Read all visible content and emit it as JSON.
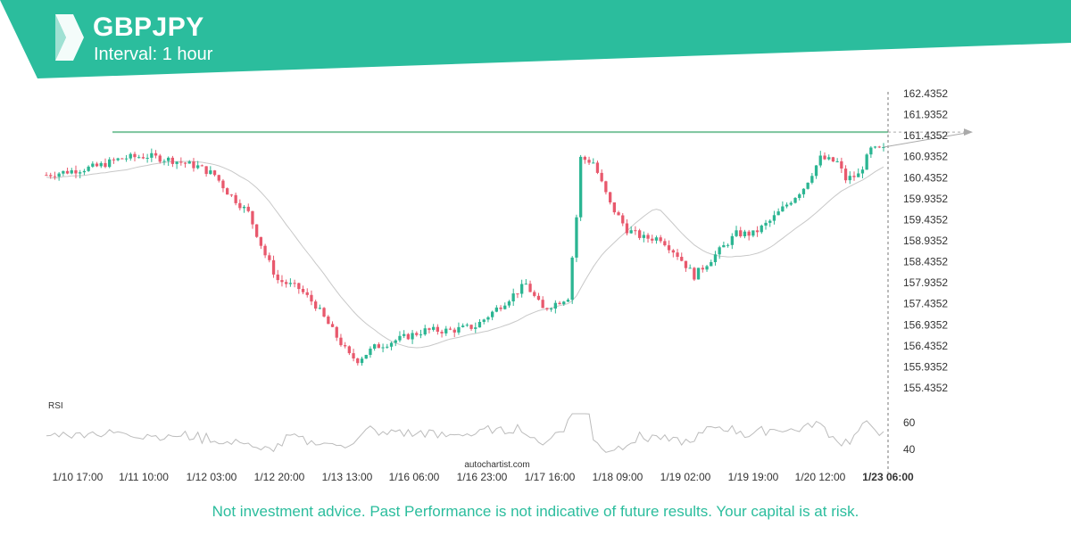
{
  "header": {
    "title": "GBPJPY",
    "subtitle": "Interval: 1 hour"
  },
  "watermark": "autochartist.com",
  "disclaimer": "Not investment advice. Past Performance is not indicative of future results. Your capital is at risk.",
  "colors": {
    "brand": "#2bbd9d",
    "up": "#2bb592",
    "down": "#e8596d",
    "resistance": "#7cc49d",
    "ma": "#c8c8c8",
    "rsi": "#bcbcbc"
  },
  "icons": [
    "autochartist-logo-icon"
  ],
  "chart_data": {
    "type": "candlestick",
    "ylim": [
      155.0,
      162.5
    ],
    "yticks": [
      "162.4352",
      "161.9352",
      "161.4352",
      "160.9352",
      "160.4352",
      "159.9352",
      "159.4352",
      "158.9352",
      "158.4352",
      "157.9352",
      "157.4352",
      "156.9352",
      "156.4352",
      "155.9352",
      "155.4352"
    ],
    "xticks": [
      "1/10 17:00",
      "1/11 10:00",
      "1/12 03:00",
      "1/12 20:00",
      "1/13 13:00",
      "1/16 06:00",
      "1/16 23:00",
      "1/17 16:00",
      "1/18 09:00",
      "1/19 02:00",
      "1/19 19:00",
      "1/20 12:00",
      "1/23 06:00"
    ],
    "highlight_xtick": "1/23 06:00",
    "resistance_level": 161.52,
    "price_path": [
      [
        0,
        160.5
      ],
      [
        6,
        160.6
      ],
      [
        12,
        160.7
      ],
      [
        18,
        160.9
      ],
      [
        24,
        160.95
      ],
      [
        30,
        160.85
      ],
      [
        36,
        160.7
      ],
      [
        40,
        160.5
      ],
      [
        43,
        160.1
      ],
      [
        48,
        159.6
      ],
      [
        52,
        158.6
      ],
      [
        55,
        158.0
      ],
      [
        60,
        157.8
      ],
      [
        64,
        157.4
      ],
      [
        68,
        156.8
      ],
      [
        72,
        156.2
      ],
      [
        74,
        156.1
      ],
      [
        78,
        156.4
      ],
      [
        84,
        156.6
      ],
      [
        90,
        156.8
      ],
      [
        96,
        156.8
      ],
      [
        102,
        156.9
      ],
      [
        108,
        157.4
      ],
      [
        114,
        157.9
      ],
      [
        118,
        157.3
      ],
      [
        124,
        157.6
      ],
      [
        126,
        159.5
      ],
      [
        127,
        160.9
      ],
      [
        130,
        160.8
      ],
      [
        134,
        159.8
      ],
      [
        138,
        159.2
      ],
      [
        142,
        159.0
      ],
      [
        146,
        159.0
      ],
      [
        150,
        158.6
      ],
      [
        154,
        158.1
      ],
      [
        156,
        158.3
      ],
      [
        160,
        158.7
      ],
      [
        164,
        159.1
      ],
      [
        168,
        159.1
      ],
      [
        172,
        159.4
      ],
      [
        176,
        159.8
      ],
      [
        180,
        160.2
      ],
      [
        184,
        160.9
      ],
      [
        188,
        160.8
      ],
      [
        190,
        160.4
      ],
      [
        193,
        160.5
      ],
      [
        196,
        161.1
      ]
    ],
    "rsi": {
      "label": "RSI",
      "levels": [
        "60",
        "40"
      ],
      "ylim": [
        30,
        70
      ]
    }
  }
}
